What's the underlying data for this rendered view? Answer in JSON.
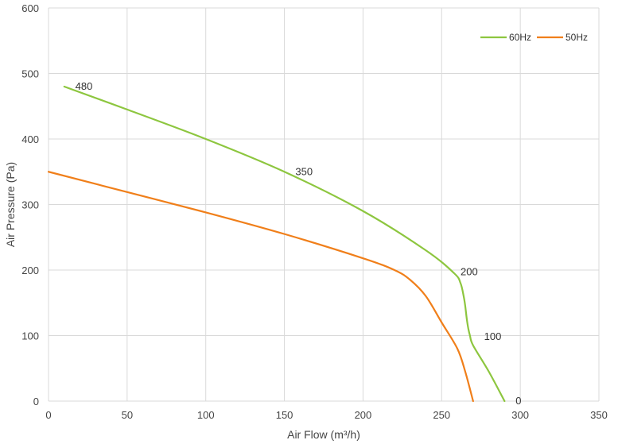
{
  "chart_data": {
    "type": "line",
    "xlabel": "Air Flow  (m³/h)",
    "ylabel": "Air Pressure  (Pa)",
    "xlim": [
      0,
      350
    ],
    "ylim": [
      0,
      600
    ],
    "xticks": [
      0,
      50,
      100,
      150,
      200,
      250,
      300,
      350
    ],
    "yticks": [
      0,
      100,
      200,
      300,
      400,
      500,
      600
    ],
    "grid": true,
    "legend_position": "top-right",
    "series": [
      {
        "name": "60Hz",
        "color": "#8dc63f",
        "x": [
          10,
          50,
          100,
          150,
          200,
          240,
          258,
          262,
          264,
          265,
          266,
          267,
          268,
          270,
          280,
          290
        ],
        "y": [
          480,
          445,
          400,
          350,
          290,
          230,
          195,
          180,
          160,
          145,
          125,
          110,
          100,
          85,
          45,
          0
        ]
      },
      {
        "name": "50Hz",
        "color": "#f07f1a",
        "x": [
          0,
          50,
          100,
          150,
          200,
          220,
          230,
          240,
          250,
          260,
          265,
          270
        ],
        "y": [
          350,
          319,
          288,
          255,
          218,
          200,
          185,
          160,
          120,
          80,
          45,
          0
        ]
      }
    ],
    "annotations": [
      {
        "text": "480",
        "x": 17,
        "y": 480
      },
      {
        "text": "350",
        "x": 157,
        "y": 350
      },
      {
        "text": "200",
        "x": 262,
        "y": 197
      },
      {
        "text": "100",
        "x": 277,
        "y": 98
      },
      {
        "text": "0",
        "x": 297,
        "y": 0
      }
    ]
  }
}
